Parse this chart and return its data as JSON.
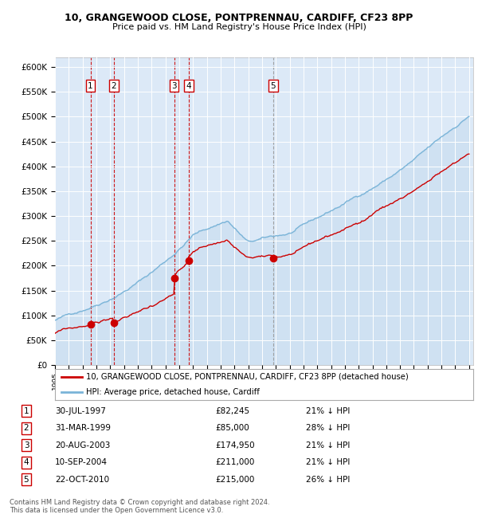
{
  "title1": "10, GRANGEWOOD CLOSE, PONTPRENNAU, CARDIFF, CF23 8PP",
  "title2": "Price paid vs. HM Land Registry's House Price Index (HPI)",
  "ylabel_ticks": [
    "£0",
    "£50K",
    "£100K",
    "£150K",
    "£200K",
    "£250K",
    "£300K",
    "£350K",
    "£400K",
    "£450K",
    "£500K",
    "£550K",
    "£600K"
  ],
  "ylim": [
    0,
    620000
  ],
  "ytick_vals": [
    0,
    50000,
    100000,
    150000,
    200000,
    250000,
    300000,
    350000,
    400000,
    450000,
    500000,
    550000,
    600000
  ],
  "plot_bg": "#dce9f7",
  "grid_color": "#ffffff",
  "hpi_line_color": "#7ab4d8",
  "hpi_fill_color": "#b8d4ea",
  "price_line_color": "#cc0000",
  "vline_color_red": "#cc0000",
  "vline_color_gray": "#999999",
  "footer_text": "Contains HM Land Registry data © Crown copyright and database right 2024.\nThis data is licensed under the Open Government Licence v3.0.",
  "sales": [
    {
      "num": 1,
      "date_str": "30-JUL-1997",
      "date_year": 1997.57,
      "price": 82245,
      "label": "21% ↓ HPI"
    },
    {
      "num": 2,
      "date_str": "31-MAR-1999",
      "date_year": 1999.25,
      "price": 85000,
      "label": "28% ↓ HPI"
    },
    {
      "num": 3,
      "date_str": "20-AUG-2003",
      "date_year": 2003.63,
      "price": 174950,
      "label": "21% ↓ HPI"
    },
    {
      "num": 4,
      "date_str": "10-SEP-2004",
      "date_year": 2004.69,
      "price": 211000,
      "label": "21% ↓ HPI"
    },
    {
      "num": 5,
      "date_str": "22-OCT-2010",
      "date_year": 2010.81,
      "price": 215000,
      "label": "26% ↓ HPI"
    }
  ],
  "legend_line1": "10, GRANGEWOOD CLOSE, PONTPRENNAU, CARDIFF, CF23 8PP (detached house)",
  "legend_line2": "HPI: Average price, detached house, Cardiff",
  "table_dates": [
    "30-JUL-1997",
    "31-MAR-1999",
    "20-AUG-2003",
    "10-SEP-2004",
    "22-OCT-2010"
  ],
  "table_prices": [
    "£82,245",
    "£85,000",
    "£174,950",
    "£211,000",
    "£215,000"
  ],
  "table_hpi": [
    "21% ↓ HPI",
    "28% ↓ HPI",
    "21% ↓ HPI",
    "21% ↓ HPI",
    "26% ↓ HPI"
  ]
}
